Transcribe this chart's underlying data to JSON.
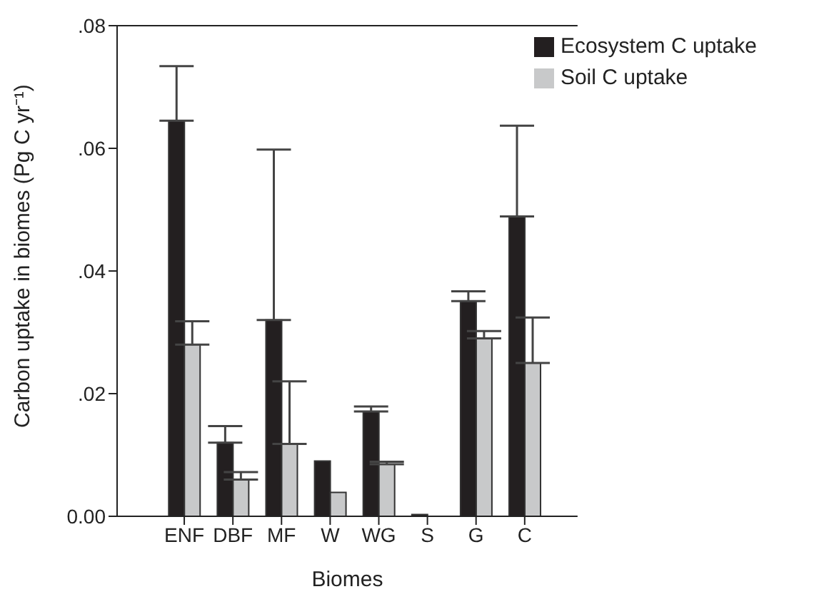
{
  "chart_data": {
    "type": "bar",
    "xlabel": "Biomes",
    "ylabel": "Carbon uptake in biomes (Pg C yr⁻¹)",
    "categories": [
      "ENF",
      "DBF",
      "MF",
      "W",
      "WG",
      "S",
      "G",
      "C"
    ],
    "series": [
      {
        "name": "Ecosystem C uptake",
        "color": "#231f20",
        "values": [
          0.0645,
          0.012,
          0.032,
          0.009,
          0.0171,
          0.0003,
          0.0351,
          0.0489
        ],
        "errors": [
          [
            0.0645,
            0.0734
          ],
          [
            0.012,
            0.0147
          ],
          [
            0.032,
            0.0598
          ],
          null,
          [
            0.0171,
            0.0179
          ],
          null,
          [
            0.0351,
            0.0367
          ],
          [
            0.0489,
            0.0637
          ]
        ]
      },
      {
        "name": "Soil C uptake",
        "color": "#c8c9ca",
        "values": [
          0.028,
          0.006,
          0.0118,
          0.0039,
          0.0085,
          null,
          0.029,
          0.025
        ],
        "errors": [
          [
            0.028,
            0.0318
          ],
          [
            0.006,
            0.0072
          ],
          [
            0.0118,
            0.022
          ],
          null,
          [
            0.0085,
            0.0089
          ],
          null,
          [
            0.029,
            0.0302
          ],
          [
            0.025,
            0.0324
          ]
        ]
      }
    ],
    "ylim": [
      0,
      0.08
    ],
    "yticks": [
      {
        "value": 0,
        "label": "0.00"
      },
      {
        "value": 0.02,
        "label": ".02"
      },
      {
        "value": 0.04,
        "label": ".04"
      },
      {
        "value": 0.06,
        "label": ".06"
      },
      {
        "value": 0.08,
        "label": ".08"
      }
    ],
    "grid": false,
    "legend": "top right"
  }
}
